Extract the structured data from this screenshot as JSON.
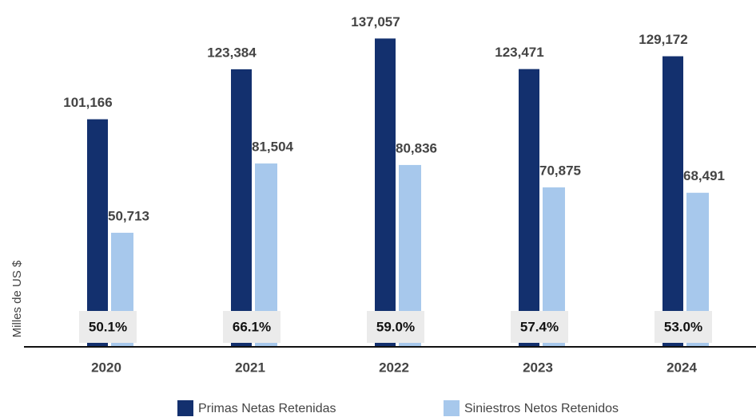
{
  "chart_data": {
    "type": "bar",
    "y_label": "Milles de US $",
    "categories": [
      "2020",
      "2021",
      "2022",
      "2023",
      "2024"
    ],
    "series": [
      {
        "name": "Primas Netas Retenidas",
        "color": "#13306e",
        "values": [
          101166,
          123384,
          137057,
          123471,
          129172
        ],
        "value_labels": [
          "101,166",
          "123,384",
          "137,057",
          "123,471",
          "129,172"
        ]
      },
      {
        "name": "Siniestros Netos Retenidos",
        "color": "#a7c8ec",
        "values": [
          50713,
          81504,
          80836,
          70875,
          68491
        ],
        "value_labels": [
          "50,713",
          "81,504",
          "80,836",
          "70,875",
          "68,491"
        ]
      }
    ],
    "ratio_labels": [
      "50.1%",
      "66.1%",
      "59.0%",
      "57.4%",
      "53.0%"
    ],
    "ylim": [
      0,
      140000
    ]
  }
}
